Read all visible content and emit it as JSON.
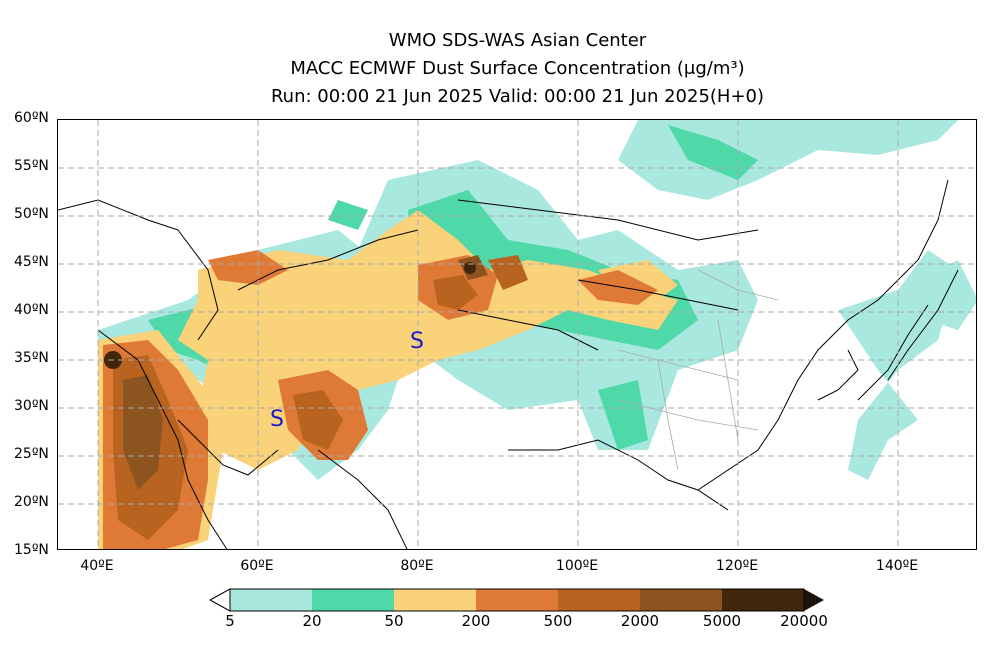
{
  "title": {
    "line1": "WMO SDS-WAS Asian Center",
    "line2": "MACC ECMWF Dust Surface Concentration (μg/m³)",
    "line3": "Run: 00:00 21 Jun 2025     Valid: 00:00 21 Jun 2025(H+0)"
  },
  "axes": {
    "lat_labels": [
      "60ºN",
      "55ºN",
      "50ºN",
      "45ºN",
      "40ºN",
      "35ºN",
      "30ºN",
      "25ºN",
      "20ºN",
      "15ºN"
    ],
    "lon_labels": [
      "40ºE",
      "60ºE",
      "80ºE",
      "100ºE",
      "120ºE",
      "140ºE"
    ],
    "lat_range": [
      15,
      60
    ],
    "lon_range": [
      35,
      150
    ],
    "grid": "dashed"
  },
  "colorbar": {
    "labels": [
      "5",
      "20",
      "50",
      "200",
      "500",
      "2000",
      "5000",
      "20000"
    ],
    "colors": [
      "#a8e8de",
      "#4fd8a8",
      "#fad27a",
      "#de7a36",
      "#b86420",
      "#8c541e",
      "#42260c"
    ]
  },
  "markers": {
    "symbol": "S",
    "color": "#1a1acc"
  }
}
